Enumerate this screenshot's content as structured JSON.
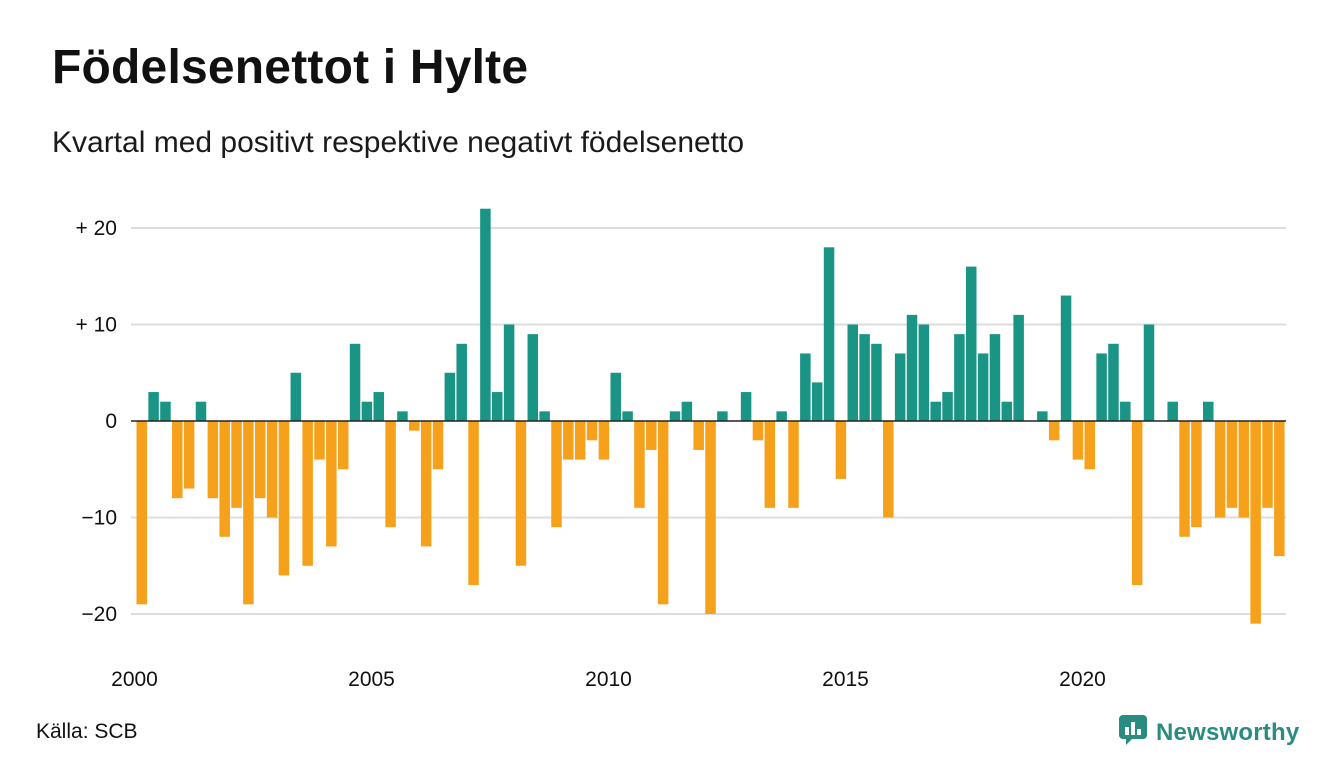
{
  "header": {
    "title": "Födelsenettot i Hylte",
    "subtitle": "Kvartal med positivt respektive negativt födelsenetto"
  },
  "footer": {
    "source": "Källa: SCB",
    "brand": "Newsworthy"
  },
  "colors": {
    "positive": "#1a9484",
    "negative": "#f5a11c",
    "grid": "#dddddd",
    "brand": "#2a8c80"
  },
  "icons": {
    "brand_logo": "bar-chart-speech-bubble-icon"
  },
  "chart_data": {
    "type": "bar",
    "x_start": "2000 Q1",
    "x_tick_labels": [
      "2000",
      "2005",
      "2010",
      "2015",
      "2020"
    ],
    "y_tick_labels": [
      "+ 20",
      "+ 10",
      "0",
      "−10",
      "−20"
    ],
    "y_ticks": [
      20,
      10,
      0,
      -10,
      -20
    ],
    "ylim": [
      -22,
      23
    ],
    "grid": true,
    "values": [
      -19,
      3,
      2,
      -8,
      -7,
      2,
      -8,
      -12,
      -9,
      -19,
      -8,
      -10,
      -16,
      5,
      -15,
      -4,
      -13,
      -5,
      8,
      2,
      3,
      -11,
      1,
      -1,
      -13,
      -5,
      5,
      8,
      -17,
      22,
      3,
      10,
      -15,
      9,
      1,
      -11,
      -4,
      -4,
      -2,
      -4,
      5,
      1,
      -9,
      -3,
      -19,
      1,
      2,
      -3,
      -20,
      1,
      0,
      3,
      -2,
      -9,
      1,
      -9,
      7,
      4,
      18,
      -6,
      10,
      9,
      8,
      -10,
      7,
      11,
      10,
      2,
      3,
      9,
      16,
      7,
      9,
      2,
      11,
      0,
      1,
      -2,
      13,
      -4,
      -5,
      7,
      8,
      2,
      -17,
      10,
      0,
      2,
      -12,
      -11,
      2,
      -10,
      -9,
      -10,
      -21,
      -9,
      -14
    ]
  }
}
